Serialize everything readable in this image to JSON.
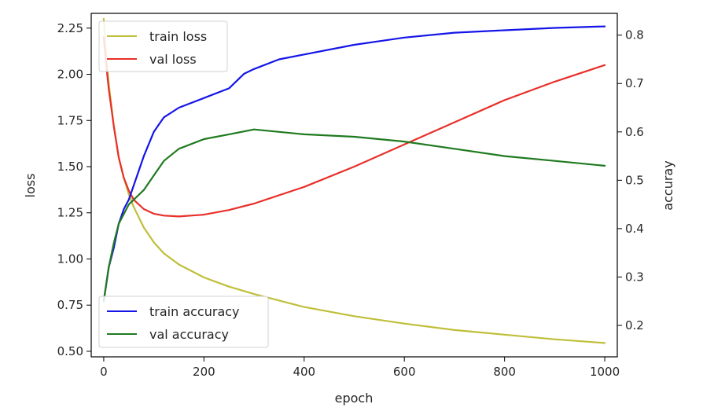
{
  "chart_data": {
    "type": "line",
    "title": "",
    "xlabel": "epoch",
    "ylabel_left": "loss",
    "ylabel_right": "accuray",
    "xlim": [
      -25,
      1025
    ],
    "ylim_left": [
      0.47,
      2.33
    ],
    "ylim_right": [
      0.135,
      0.845
    ],
    "grid": false,
    "x_ticks": [
      {
        "value": 0,
        "label": "0"
      },
      {
        "value": 200,
        "label": "200"
      },
      {
        "value": 400,
        "label": "400"
      },
      {
        "value": 600,
        "label": "600"
      },
      {
        "value": 800,
        "label": "800"
      },
      {
        "value": 1000,
        "label": "1000"
      }
    ],
    "y_left_ticks": [
      {
        "value": 0.5,
        "label": "0.50"
      },
      {
        "value": 0.75,
        "label": "0.75"
      },
      {
        "value": 1.0,
        "label": "1.00"
      },
      {
        "value": 1.25,
        "label": "1.25"
      },
      {
        "value": 1.5,
        "label": "1.50"
      },
      {
        "value": 1.75,
        "label": "1.75"
      },
      {
        "value": 2.0,
        "label": "2.00"
      },
      {
        "value": 2.25,
        "label": "2.25"
      }
    ],
    "y_right_ticks": [
      {
        "value": 0.2,
        "label": "0.2"
      },
      {
        "value": 0.3,
        "label": "0.3"
      },
      {
        "value": 0.4,
        "label": "0.4"
      },
      {
        "value": 0.5,
        "label": "0.5"
      },
      {
        "value": 0.6,
        "label": "0.6"
      },
      {
        "value": 0.7,
        "label": "0.7"
      },
      {
        "value": 0.8,
        "label": "0.8"
      }
    ],
    "legends": [
      {
        "placement": "upper left",
        "entries": [
          "train loss",
          "val loss"
        ]
      },
      {
        "placement": "lower left",
        "entries": [
          "train accuracy",
          "val accuracy"
        ]
      }
    ],
    "series": [
      {
        "name": "train loss",
        "axis": "left",
        "color": "#bfbf3a",
        "x": [
          0,
          5,
          10,
          20,
          30,
          40,
          50,
          60,
          80,
          100,
          120,
          150,
          200,
          250,
          300,
          400,
          500,
          600,
          700,
          800,
          900,
          1000
        ],
        "y": [
          2.3,
          2.1,
          1.95,
          1.72,
          1.55,
          1.44,
          1.35,
          1.28,
          1.17,
          1.09,
          1.03,
          0.97,
          0.9,
          0.85,
          0.81,
          0.74,
          0.69,
          0.65,
          0.615,
          0.59,
          0.565,
          0.545
        ]
      },
      {
        "name": "val loss",
        "axis": "left",
        "color": "#e8302a",
        "x": [
          0,
          5,
          10,
          20,
          30,
          40,
          50,
          60,
          80,
          100,
          120,
          150,
          200,
          250,
          300,
          400,
          500,
          600,
          700,
          800,
          900,
          1000
        ],
        "y": [
          2.2,
          2.05,
          1.92,
          1.72,
          1.55,
          1.44,
          1.37,
          1.32,
          1.27,
          1.245,
          1.235,
          1.23,
          1.24,
          1.265,
          1.3,
          1.39,
          1.5,
          1.62,
          1.74,
          1.86,
          1.96,
          2.05
        ]
      },
      {
        "name": "train accuracy",
        "axis": "right",
        "color": "#1515e8",
        "x": [
          0,
          10,
          20,
          30,
          40,
          50,
          60,
          80,
          100,
          120,
          150,
          200,
          250,
          280,
          300,
          350,
          400,
          500,
          600,
          700,
          800,
          900,
          1000
        ],
        "y": [
          0.25,
          0.32,
          0.36,
          0.41,
          0.44,
          0.46,
          0.49,
          0.55,
          0.6,
          0.63,
          0.65,
          0.67,
          0.69,
          0.72,
          0.73,
          0.75,
          0.76,
          0.78,
          0.795,
          0.805,
          0.81,
          0.815,
          0.818
        ]
      },
      {
        "name": "val accuracy",
        "axis": "right",
        "color": "#1f7a1f",
        "x": [
          0,
          10,
          20,
          30,
          40,
          50,
          60,
          80,
          100,
          120,
          150,
          200,
          250,
          300,
          400,
          500,
          600,
          700,
          800,
          900,
          1000
        ],
        "y": [
          0.25,
          0.32,
          0.37,
          0.41,
          0.43,
          0.45,
          0.46,
          0.48,
          0.51,
          0.54,
          0.565,
          0.585,
          0.595,
          0.605,
          0.595,
          0.59,
          0.58,
          0.565,
          0.55,
          0.54,
          0.53
        ]
      }
    ]
  }
}
